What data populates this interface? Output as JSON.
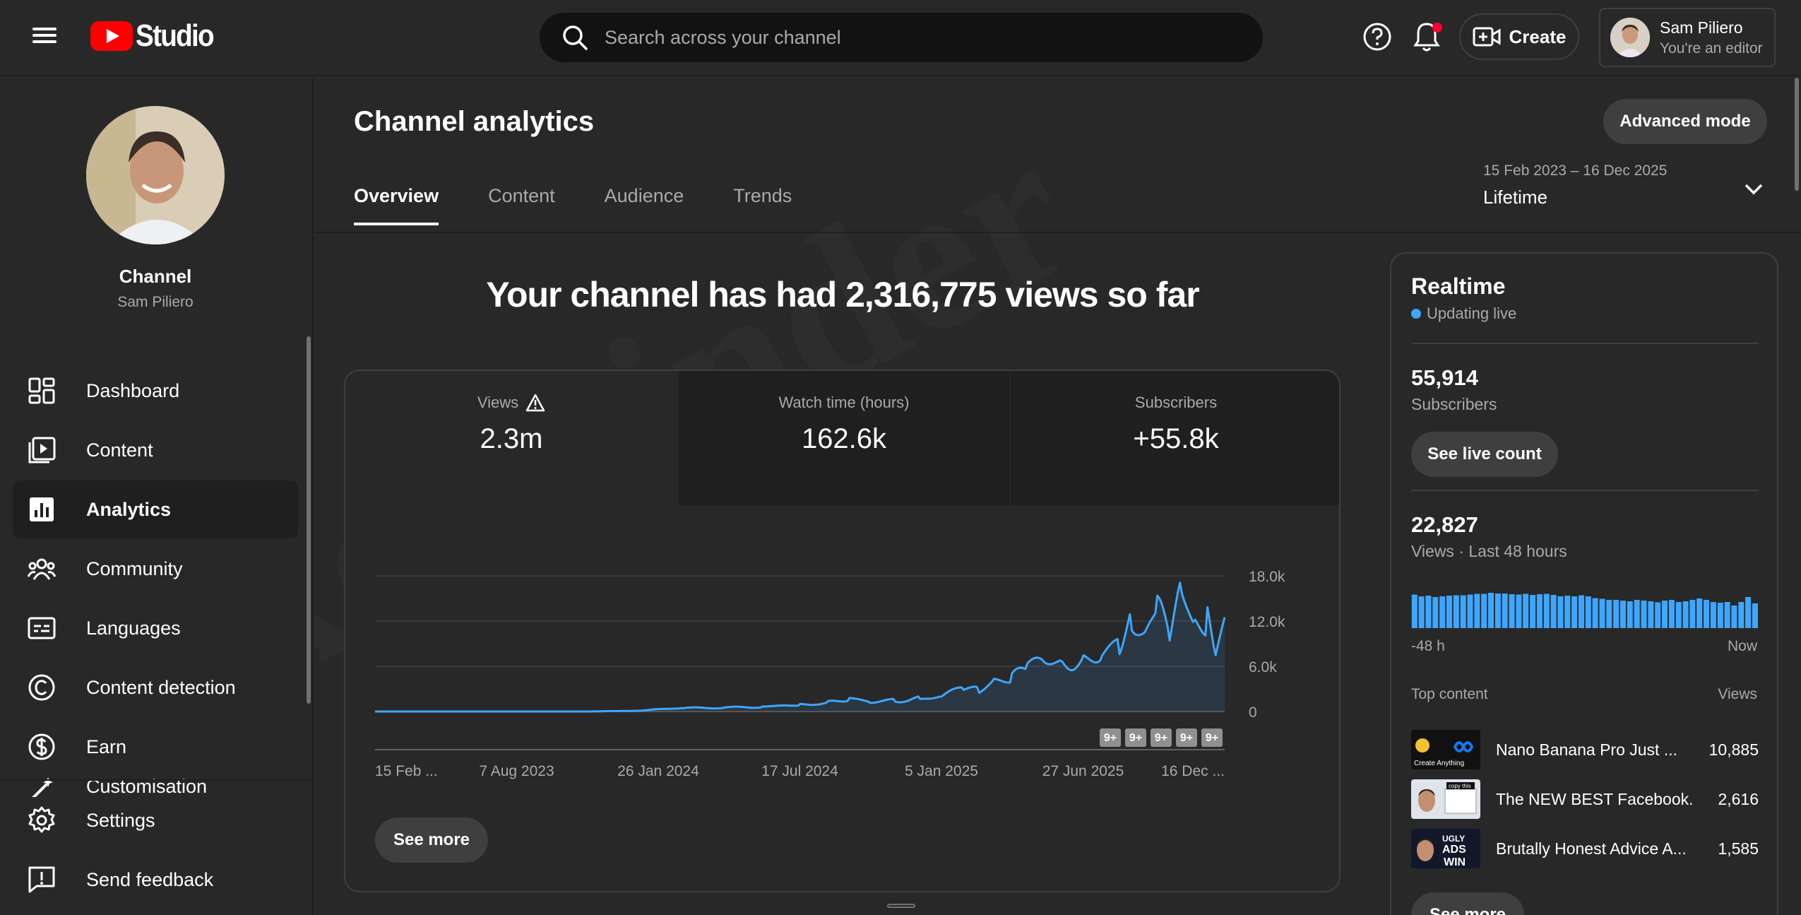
{
  "topbar": {
    "logo_text": "Studio",
    "search_placeholder": "Search across your channel",
    "create_label": "Create",
    "account_name": "Sam Piliero",
    "account_role": "You're an editor"
  },
  "sidebar": {
    "channel_title": "Channel",
    "channel_name": "Sam Piliero",
    "items": [
      {
        "label": "Dashboard",
        "icon": "dashboard-icon"
      },
      {
        "label": "Content",
        "icon": "content-icon"
      },
      {
        "label": "Analytics",
        "icon": "analytics-icon",
        "active": true
      },
      {
        "label": "Community",
        "icon": "community-icon"
      },
      {
        "label": "Languages",
        "icon": "languages-icon"
      },
      {
        "label": "Content detection",
        "icon": "copyright-icon"
      },
      {
        "label": "Earn",
        "icon": "dollar-icon"
      },
      {
        "label": "Customisation",
        "icon": "magic-wand-icon"
      }
    ],
    "bottom": [
      {
        "label": "Settings",
        "icon": "gear-icon"
      },
      {
        "label": "Send feedback",
        "icon": "feedback-icon"
      }
    ]
  },
  "main": {
    "title": "Channel analytics",
    "advanced_mode": "Advanced mode",
    "tabs": [
      "Overview",
      "Content",
      "Audience",
      "Trends"
    ],
    "active_tab": "Overview",
    "date_range": "15 Feb 2023 – 16 Dec 2025",
    "date_preset": "Lifetime",
    "headline": "Your channel has had 2,316,775 views so far",
    "metrics": [
      {
        "label": "Views",
        "value": "2.3m",
        "warning": true
      },
      {
        "label": "Watch time (hours)",
        "value": "162.6k"
      },
      {
        "label": "Subscribers",
        "value": "+55.8k"
      }
    ],
    "see_more": "See more",
    "video_badges": [
      "9+",
      "9+",
      "9+",
      "9+",
      "9+"
    ]
  },
  "chart_data": {
    "type": "line",
    "title": "",
    "xlabel": "",
    "ylabel": "",
    "series": [
      {
        "name": "Views",
        "values_note_excluded": false
      }
    ],
    "x_tick_labels": [
      "15 Feb ...",
      "7 Aug 2023",
      "26 Jan 2024",
      "17 Jul 2024",
      "5 Jan 2025",
      "27 Jun 2025",
      "16 Dec ..."
    ],
    "y_tick_labels": [
      "0",
      "6.0k",
      "12.0k",
      "18.0k"
    ],
    "ylim": [
      0,
      18000
    ],
    "y_axis_side": "right",
    "grid": true,
    "points": [
      [
        "2023-02-15",
        0
      ],
      [
        "2023-05-01",
        0
      ],
      [
        "2023-08-07",
        0
      ],
      [
        "2023-11-01",
        0
      ],
      [
        "2024-01-01",
        100
      ],
      [
        "2024-01-26",
        300
      ],
      [
        "2024-03-01",
        450
      ],
      [
        "2024-04-15",
        500
      ],
      [
        "2024-06-01",
        650
      ],
      [
        "2024-07-17",
        900
      ],
      [
        "2024-08-20",
        1200
      ],
      [
        "2024-09-15",
        1800
      ],
      [
        "2024-10-10",
        1400
      ],
      [
        "2024-11-10",
        1500
      ],
      [
        "2024-12-10",
        1700
      ],
      [
        "2025-01-05",
        2000
      ],
      [
        "2025-02-01",
        3200
      ],
      [
        "2025-02-20",
        2600
      ],
      [
        "2025-03-10",
        3800
      ],
      [
        "2025-04-01",
        4200
      ],
      [
        "2025-04-20",
        6000
      ],
      [
        "2025-05-10",
        7000
      ],
      [
        "2025-06-01",
        6800
      ],
      [
        "2025-06-27",
        7200
      ],
      [
        "2025-07-20",
        8000
      ],
      [
        "2025-08-10",
        9500
      ],
      [
        "2025-08-25",
        12500
      ],
      [
        "2025-09-10",
        10000
      ],
      [
        "2025-09-25",
        13500
      ],
      [
        "2025-10-10",
        9000
      ],
      [
        "2025-10-25",
        15500
      ],
      [
        "2025-11-10",
        11000
      ],
      [
        "2025-11-25",
        12000
      ],
      [
        "2025-12-05",
        7500
      ],
      [
        "2025-12-16",
        12500
      ]
    ]
  },
  "realtime": {
    "title": "Realtime",
    "status": "Updating live",
    "subscribers_value": "55,914",
    "subscribers_label": "Subscribers",
    "see_live_count": "See live count",
    "views_value": "22,827",
    "views_label": "Views · Last 48 hours",
    "axis_start": "-48 h",
    "axis_end": "Now",
    "hourly_views": [
      0.95,
      0.9,
      0.92,
      0.88,
      0.9,
      0.92,
      0.93,
      0.93,
      0.95,
      0.97,
      0.97,
      1.0,
      0.98,
      0.98,
      0.96,
      0.95,
      0.97,
      0.94,
      0.96,
      0.97,
      0.94,
      0.9,
      0.92,
      0.9,
      0.93,
      0.9,
      0.85,
      0.83,
      0.8,
      0.8,
      0.78,
      0.76,
      0.8,
      0.78,
      0.76,
      0.73,
      0.78,
      0.8,
      0.74,
      0.76,
      0.8,
      0.84,
      0.8,
      0.74,
      0.72,
      0.74,
      0.64,
      0.74,
      0.88,
      0.7
    ],
    "top_content_label": "Top content",
    "views_col_label": "Views",
    "top_content": [
      {
        "title": "Nano Banana Pro Just ...",
        "views": "10,885",
        "thumb_text": "Create Anything"
      },
      {
        "title": "The NEW BEST Facebook...",
        "views": "2,616",
        "thumb_text": "copy this"
      },
      {
        "title": "Brutally Honest Advice A...",
        "views": "1,585",
        "thumb_text": "UGLY ADS WIN"
      }
    ],
    "see_more": "See more"
  },
  "colors": {
    "accent": "#3ea6ff",
    "brand": "#ff0000",
    "bg": "#282828",
    "panel": "#1f1f1f"
  }
}
